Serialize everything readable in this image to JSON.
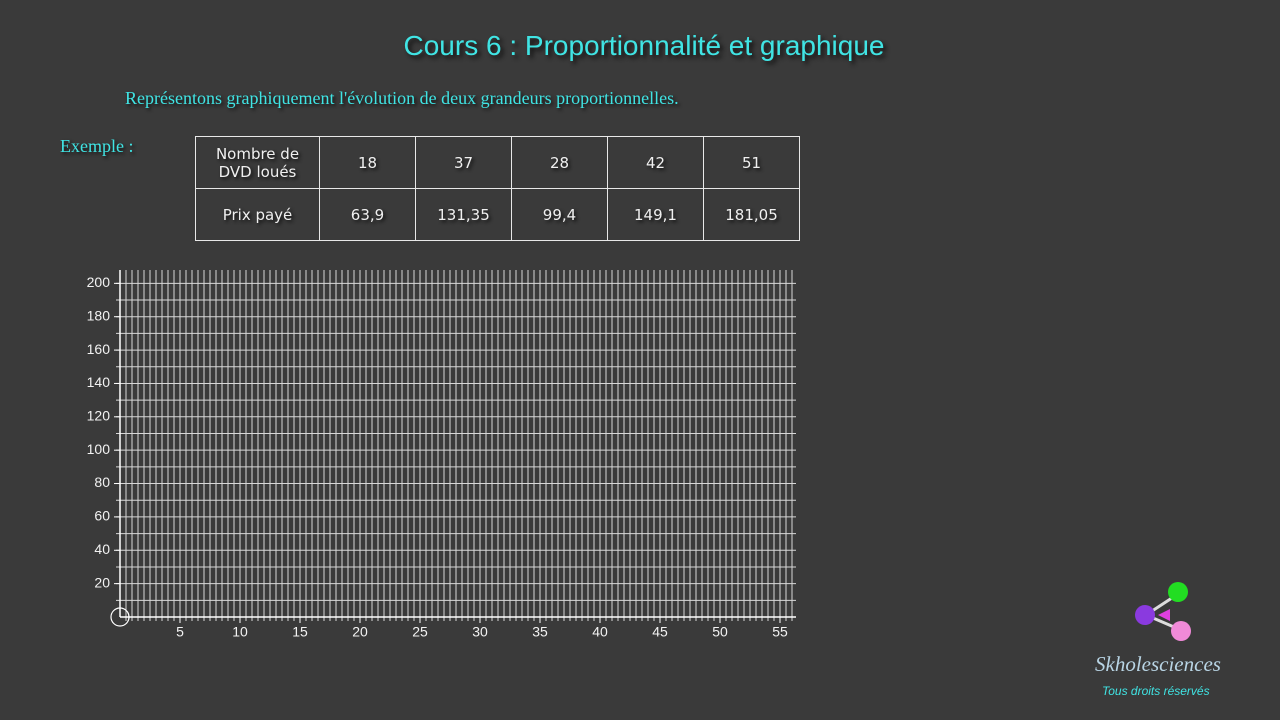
{
  "header": {
    "title": "Cours 6 : Proportionnalité et graphique",
    "subtitle": "Représentons graphiquement l'évolution de deux grandeurs proportionnelles."
  },
  "example_label": "Exemple :",
  "table": {
    "rows": [
      [
        "Nombre de DVD loués",
        "18",
        "37",
        "28",
        "42",
        "51"
      ],
      [
        "Prix payé",
        "63,9",
        "131,35",
        "99,4",
        "149,1",
        "181,05"
      ]
    ]
  },
  "graph": {
    "xlim": [
      0,
      56
    ],
    "ylim": [
      0,
      208
    ],
    "xticks": [
      5,
      10,
      15,
      20,
      25,
      30,
      35,
      40,
      45,
      50,
      55
    ],
    "yticks": [
      20,
      40,
      60,
      80,
      100,
      120,
      140,
      160,
      180,
      200
    ],
    "grid": {
      "x_step": 0.5,
      "y_step": 10
    }
  },
  "footer": {
    "brand": "Skholesciences",
    "rights": "Tous droits réservés"
  }
}
